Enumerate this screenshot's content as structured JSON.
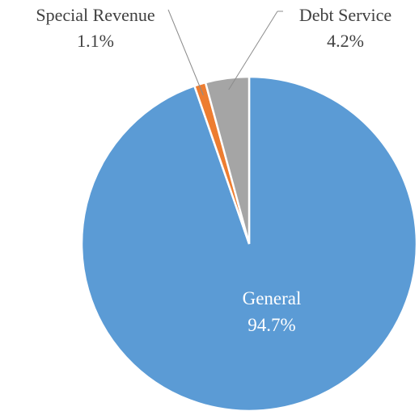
{
  "chart_data": {
    "type": "pie",
    "title": "",
    "slices": [
      {
        "name": "General",
        "value": 94.7,
        "label": "94.7%",
        "color": "#5b9bd5",
        "label_position": "inside"
      },
      {
        "name": "Special Revenue",
        "value": 1.1,
        "label": "1.1%",
        "color": "#ed7d31",
        "label_position": "outside-left"
      },
      {
        "name": "Debt Service",
        "value": 4.2,
        "label": "4.2%",
        "color": "#a5a5a5",
        "label_position": "outside-right"
      }
    ],
    "legend": "none"
  }
}
